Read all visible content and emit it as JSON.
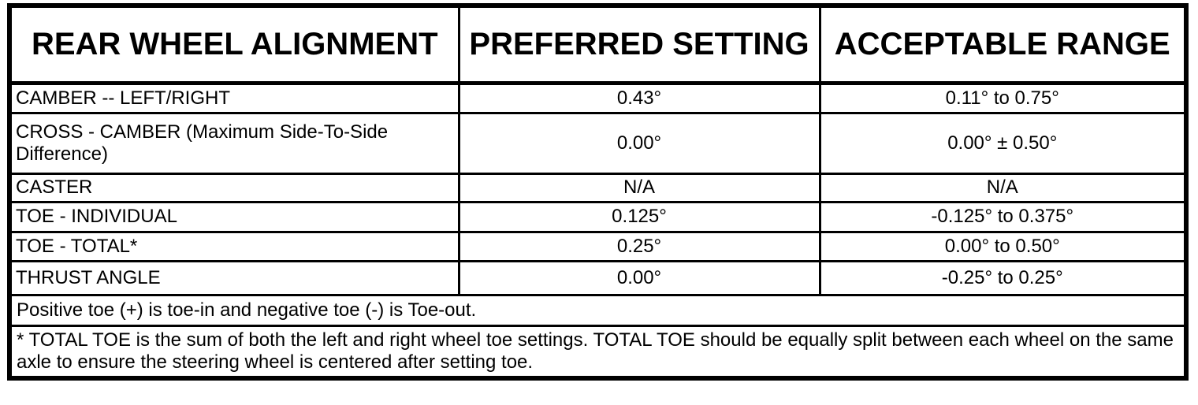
{
  "table": {
    "header": {
      "col1": "REAR WHEEL ALIGNMENT",
      "col2": "PREFERRED SETTING",
      "col3": "ACCEPTABLE RANGE"
    },
    "rows": [
      {
        "label": "CAMBER -- LEFT/RIGHT",
        "preferred": "0.43°",
        "range": "0.11° to 0.75°"
      },
      {
        "label": "CROSS - CAMBER (Maximum Side-To-Side Difference)",
        "preferred": "0.00°",
        "range": "0.00° ± 0.50°"
      },
      {
        "label": "CASTER",
        "preferred": "N/A",
        "range": "N/A"
      },
      {
        "label": "TOE - INDIVIDUAL",
        "preferred": "0.125°",
        "range": "-0.125° to 0.375°"
      },
      {
        "label": "TOE - TOTAL*",
        "preferred": "0.25°",
        "range": "0.00° to 0.50°"
      },
      {
        "label": "THRUST ANGLE",
        "preferred": "0.00°",
        "range": "-0.25° to 0.25°"
      }
    ],
    "notes": [
      "Positive toe (+) is toe-in and negative toe (-) is Toe-out.",
      "* TOTAL TOE is the sum of both the left and right wheel toe settings. TOTAL TOE should be equally split between each wheel on the same axle to ensure the steering wheel is centered after setting toe."
    ],
    "colors": {
      "border": "#000000",
      "background": "#ffffff",
      "text": "#000000"
    }
  }
}
